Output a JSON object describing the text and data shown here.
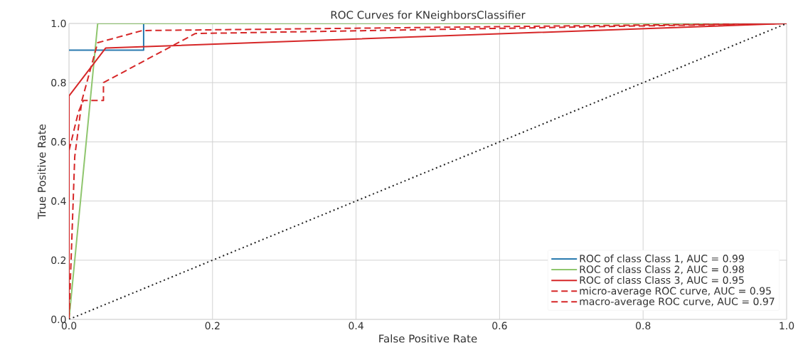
{
  "chart_data": {
    "type": "line",
    "title": "ROC Curves for KNeighborsClassifier",
    "xlabel": "False Positive Rate",
    "ylabel": "True Positive Rate",
    "xlim": [
      0.0,
      1.0
    ],
    "ylim": [
      0.0,
      1.0
    ],
    "xticks": [
      {
        "value": 0,
        "label": "0.0"
      },
      {
        "value": 0.2,
        "label": "0.2"
      },
      {
        "value": 0.4,
        "label": "0.4"
      },
      {
        "value": 0.6,
        "label": "0.6"
      },
      {
        "value": 0.8,
        "label": "0.8"
      },
      {
        "value": 1,
        "label": "1.0"
      }
    ],
    "yticks": [
      {
        "value": 0,
        "label": "0.0"
      },
      {
        "value": 0.2,
        "label": "0.2"
      },
      {
        "value": 0.4,
        "label": "0.4"
      },
      {
        "value": 0.6,
        "label": "0.6"
      },
      {
        "value": 0.8,
        "label": "0.8"
      },
      {
        "value": 1,
        "label": "1.0"
      }
    ],
    "grid": true,
    "legend": "bottom right",
    "marker": "none",
    "series": [
      {
        "name": "ROC of class Class 1, AUC = 0.99",
        "color": "#2a7bb0",
        "line_style": "solid",
        "x": [
          0,
          0.104,
          0.104
        ],
        "values": [
          0.91,
          0.91,
          1.0
        ]
      },
      {
        "name": "ROC of class Class 2, AUC = 0.98",
        "color": "#8fc66e",
        "line_style": "solid",
        "x": [
          0,
          0.04,
          1
        ],
        "values": [
          0,
          1.0,
          1.0
        ]
      },
      {
        "name": "ROC of class Class 3, AUC = 0.95",
        "color": "#d62728",
        "line_style": "solid",
        "x": [
          0,
          0,
          0.051,
          1
        ],
        "values": [
          0,
          0.755,
          0.917,
          1.0
        ]
      },
      {
        "name": "micro-average ROC curve, AUC = 0.95",
        "color": "#d62728",
        "line_style": "dashed",
        "x": [
          0,
          0.008,
          0.018,
          0.04,
          0.102,
          1
        ],
        "values": [
          0,
          0.55,
          0.74,
          0.935,
          0.976,
          1.0
        ]
      },
      {
        "name": "macro-average ROC curve, AUC = 0.97",
        "color": "#d62728",
        "line_style": "dashed",
        "x": [
          0,
          0,
          0.013,
          0.02,
          0.048,
          0.048,
          0.176,
          1
        ],
        "values": [
          0,
          0.57,
          0.7,
          0.74,
          0.74,
          0.8,
          0.966,
          1.0
        ]
      },
      {
        "color": "#222222",
        "line_style": "dotted",
        "x": [
          0,
          1
        ],
        "values": [
          0,
          1
        ]
      }
    ]
  }
}
